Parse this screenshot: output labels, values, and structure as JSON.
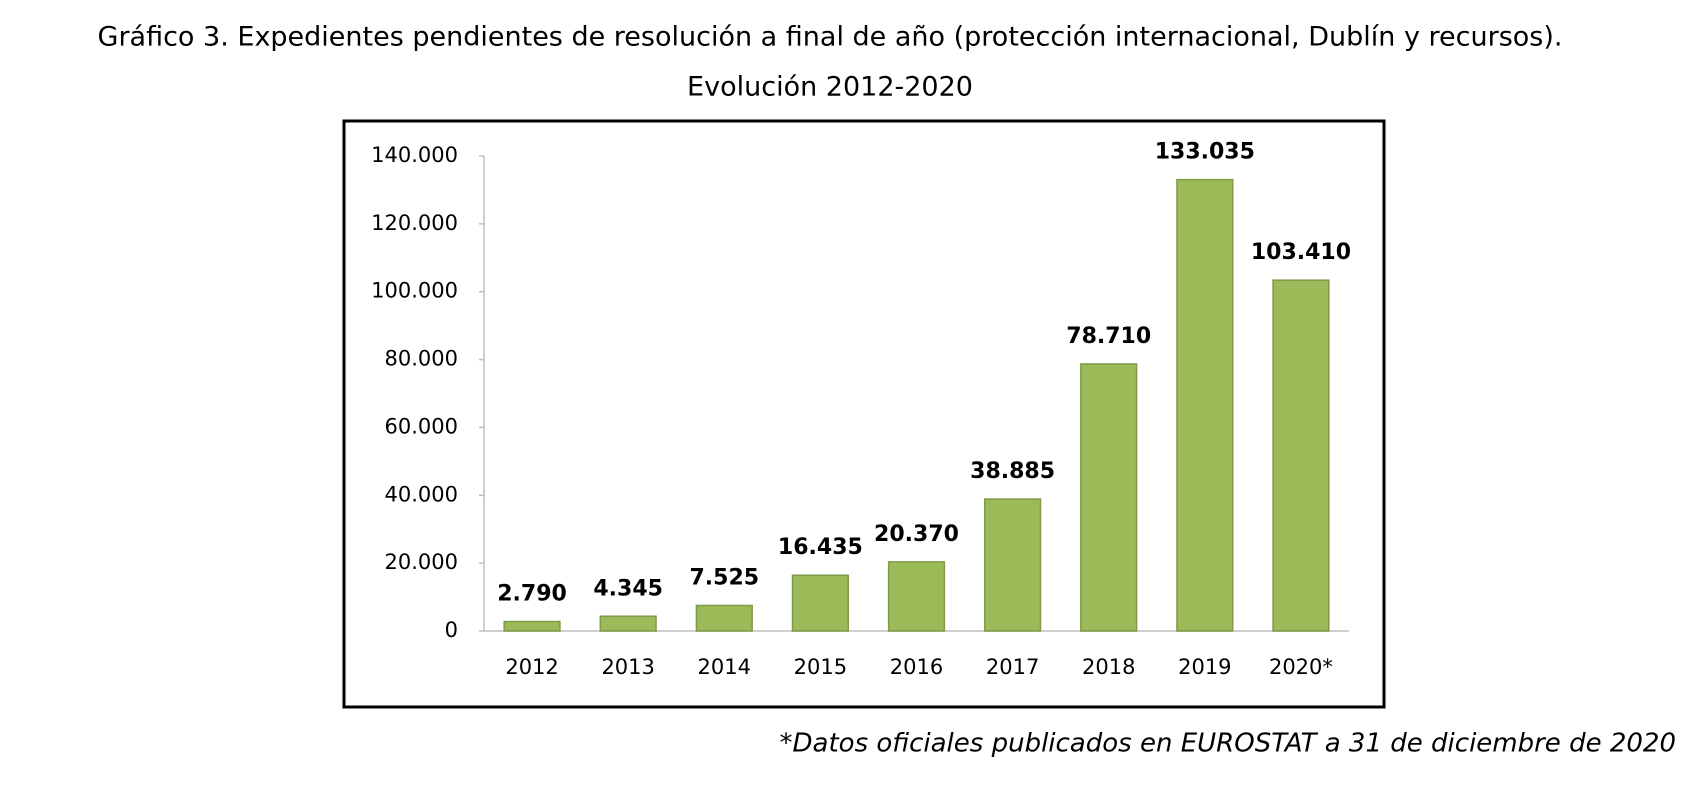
{
  "chart_data": {
    "type": "bar",
    "title": "Gráfico 3. Expedientes pendientes de resolución a final de año (protección internacional, Dublín y recursos).",
    "subtitle": "Evolución 2012-2020",
    "categories": [
      "2012",
      "2013",
      "2014",
      "2015",
      "2016",
      "2017",
      "2018",
      "2019",
      "2020*"
    ],
    "values": [
      2790,
      4345,
      7525,
      16435,
      20370,
      38885,
      78710,
      133035,
      103410
    ],
    "value_labels": [
      "2.790",
      "4.345",
      "7.525",
      "16.435",
      "20.370",
      "38.885",
      "78.710",
      "133.035",
      "103.410"
    ],
    "color": "#9bbb59",
    "ylim": [
      0,
      140000
    ],
    "yticks": [
      0,
      {
        "value": 20000,
        "label": "20.000"
      },
      {
        "value": 40000,
        "label": "40.000"
      },
      {
        "value": 60000,
        "label": "60.000"
      },
      {
        "value": 80000,
        "label": "80.000"
      },
      {
        "value": 100000,
        "label": "100.000"
      },
      {
        "value": 120000,
        "label": "120.000"
      },
      {
        "value": 140000,
        "label": "140.000"
      }
    ],
    "grid": false,
    "footnote": "*Datos oficiales publicados en EUROSTAT a 31 de diciembre de 2020"
  }
}
